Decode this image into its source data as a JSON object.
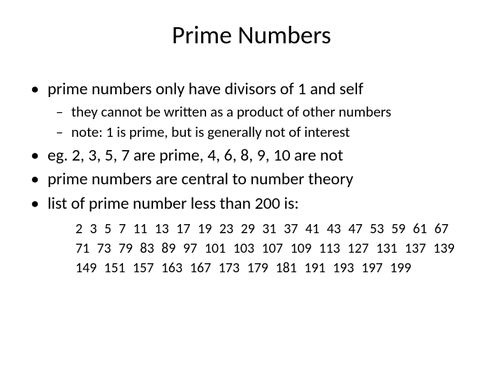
{
  "title": "Prime Numbers",
  "bullets": {
    "b1": "prime numbers only have divisors of 1 and self",
    "b1_sub1": "they cannot be written as a product of other numbers",
    "b1_sub2": "note: 1 is prime, but is generally not of interest",
    "b2": "eg. 2, 3, 5, 7 are prime, 4, 6, 8, 9, 10 are not",
    "b3": "prime numbers are central to number theory",
    "b4": "list of prime number less than 200 is:"
  },
  "primes_text": "2 3 5 7 11 13 17 19 23 29 31 37 41 43 47 53 59 61 67 71 73 79 83 89 97 101 103 107 109 113 127 131 137 139 149 151 157 163 167 173 179 181 191 193 197 199",
  "style": {
    "background_color": "#ffffff",
    "text_color": "#000000",
    "title_fontsize": 36,
    "level1_fontsize": 24,
    "level2_fontsize": 21,
    "primes_fontsize": 20,
    "font_family": "Calibri"
  }
}
